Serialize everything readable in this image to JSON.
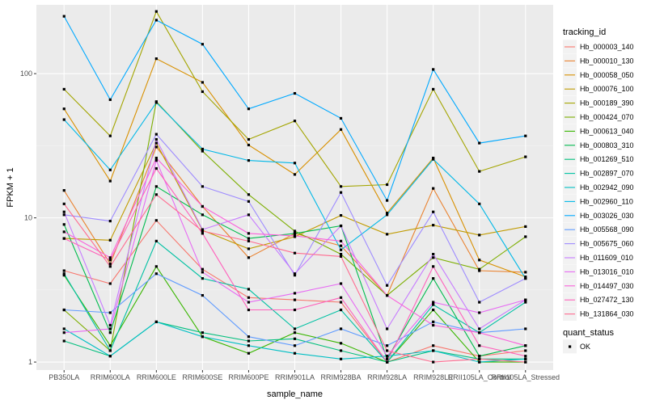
{
  "chart_data": {
    "type": "line",
    "xlabel": "sample_name",
    "ylabel": "FPKM + 1",
    "y_scale": "log10",
    "ylim": [
      0.88,
      300
    ],
    "y_ticks": [
      1,
      10,
      100
    ],
    "y_tick_labels": [
      "1",
      "10",
      "100"
    ],
    "grid": true,
    "legend_position": "right",
    "categories": [
      "PB350LA",
      "RRIM600LA",
      "RRIM600LE",
      "RRIM600SE",
      "RRIM600PE",
      "RRIM901LA",
      "RRIM928BA",
      "RRIM928LA",
      "RRIM928LE",
      "RRII105LA_Control",
      "RRII105LA_Stressed"
    ],
    "color_legend": {
      "title": "tracking_id",
      "entries": [
        "Hb_000003_140",
        "Hb_000010_130",
        "Hb_000058_050",
        "Hb_000076_100",
        "Hb_000189_390",
        "Hb_000424_070",
        "Hb_000613_040",
        "Hb_000803_310",
        "Hb_001269_510",
        "Hb_002897_070",
        "Hb_002942_090",
        "Hb_002960_110",
        "Hb_003026_030",
        "Hb_005568_090",
        "Hb_005675_060",
        "Hb_011609_010",
        "Hb_013016_010",
        "Hb_014497_030",
        "Hb_027472_130",
        "Hb_131864_030"
      ]
    },
    "shape_legend": {
      "title": "quant_status",
      "entries": [
        "OK"
      ]
    },
    "series": [
      {
        "name": "Hb_000003_140",
        "color": "#F8766D",
        "values": [
          4.3,
          3.5,
          9.6,
          4.4,
          2.8,
          2.7,
          2.6,
          1.0,
          1.3,
          1.1,
          1.2
        ]
      },
      {
        "name": "Hb_000010_130",
        "color": "#EA8331",
        "values": [
          15.5,
          4.8,
          31,
          12,
          5.3,
          7.8,
          6.4,
          2.9,
          16,
          4.3,
          4.2
        ]
      },
      {
        "name": "Hb_000058_050",
        "color": "#D89000",
        "values": [
          57,
          18,
          127,
          87,
          32,
          20,
          41,
          10.8,
          26,
          5.1,
          3.9
        ]
      },
      {
        "name": "Hb_000076_100",
        "color": "#C09B00",
        "values": [
          7.2,
          7.0,
          33,
          8.2,
          6.1,
          7.4,
          10.4,
          7.7,
          8.9,
          7.6,
          8.7
        ]
      },
      {
        "name": "Hb_000189_390",
        "color": "#A3A500",
        "values": [
          78,
          37,
          270,
          75,
          35,
          47,
          16.5,
          17,
          78,
          21,
          26.5
        ]
      },
      {
        "name": "Hb_000424_070",
        "color": "#7CAE00",
        "values": [
          2.3,
          1.2,
          64,
          29,
          14.5,
          8.1,
          5.6,
          2.9,
          5.3,
          4.4,
          7.4
        ]
      },
      {
        "name": "Hb_000613_040",
        "color": "#39B600",
        "values": [
          4.0,
          1.3,
          4.6,
          1.5,
          1.15,
          1.6,
          1.35,
          1.0,
          2.3,
          1.0,
          1.0
        ]
      },
      {
        "name": "Hb_000803_310",
        "color": "#00BB4E",
        "values": [
          9.0,
          1.6,
          16.5,
          10.5,
          7.2,
          7.8,
          8.8,
          1.05,
          3.8,
          1.1,
          1.3
        ]
      },
      {
        "name": "Hb_001269_510",
        "color": "#00BF7D",
        "values": [
          1.4,
          1.1,
          1.9,
          1.6,
          1.4,
          1.45,
          1.2,
          1.0,
          1.2,
          1.05,
          1.05
        ]
      },
      {
        "name": "Hb_002897_070",
        "color": "#00C1A3",
        "values": [
          4.1,
          1.2,
          6.9,
          3.8,
          3.2,
          1.7,
          2.3,
          1.0,
          2.5,
          1.6,
          2.6
        ]
      },
      {
        "name": "Hb_002942_090",
        "color": "#00BFC4",
        "values": [
          1.7,
          1.1,
          1.9,
          1.5,
          1.3,
          1.15,
          1.05,
          1.1,
          1.2,
          1.0,
          1.05
        ]
      },
      {
        "name": "Hb_002960_110",
        "color": "#00B8E7",
        "values": [
          48,
          21.5,
          63,
          30,
          25,
          24,
          6.0,
          10.5,
          25.5,
          12.5,
          3.8
        ]
      },
      {
        "name": "Hb_003026_030",
        "color": "#00A9FF",
        "values": [
          250,
          66,
          235,
          160,
          57,
          73,
          49,
          13.2,
          107,
          33,
          37
        ]
      },
      {
        "name": "Hb_005568_090",
        "color": "#619CFF",
        "values": [
          2.3,
          2.2,
          4.1,
          2.9,
          1.5,
          1.3,
          1.7,
          1.3,
          1.9,
          1.6,
          1.7
        ]
      },
      {
        "name": "Hb_005675_060",
        "color": "#9F8CFF",
        "values": [
          10.5,
          9.5,
          38,
          16.5,
          13,
          4.0,
          15,
          3.4,
          11,
          2.6,
          3.8
        ]
      },
      {
        "name": "Hb_011609_010",
        "color": "#C77CFF",
        "values": [
          11,
          1.8,
          35,
          8.3,
          10.5,
          4.1,
          8.8,
          1.7,
          5.6,
          1.7,
          2.7
        ]
      },
      {
        "name": "Hb_013016_010",
        "color": "#E76BF3",
        "values": [
          1.6,
          1.7,
          25,
          4.2,
          2.6,
          3.0,
          3.5,
          1.1,
          2.6,
          2.2,
          2.7
        ]
      },
      {
        "name": "Hb_014497_030",
        "color": "#FA62DB",
        "values": [
          8.0,
          5.3,
          26,
          12,
          7.8,
          7.5,
          6.9,
          2.9,
          1.8,
          1.6,
          1.3
        ]
      },
      {
        "name": "Hb_027472_130",
        "color": "#FF62BC",
        "values": [
          7.2,
          5.1,
          22,
          7.8,
          2.3,
          2.3,
          2.8,
          1.0,
          4.6,
          1.3,
          1.1
        ]
      },
      {
        "name": "Hb_131864_030",
        "color": "#FF6C91",
        "values": [
          12.5,
          4.6,
          14.5,
          8.1,
          6.9,
          5.7,
          5.4,
          1.2,
          1.0,
          1.05,
          1.0
        ]
      }
    ]
  }
}
